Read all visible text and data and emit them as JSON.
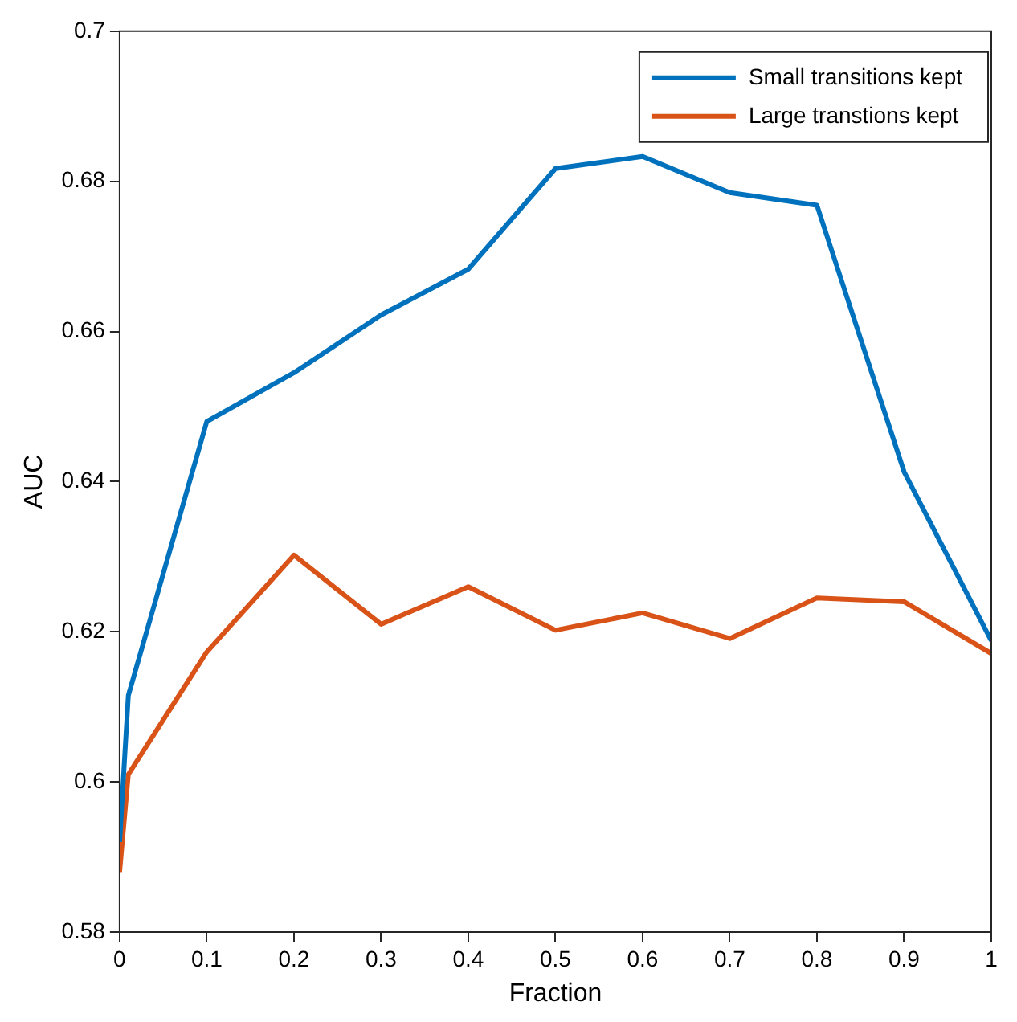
{
  "chart_data": {
    "type": "line",
    "xlabel": "Fraction",
    "ylabel": "AUC",
    "x": [
      0,
      0.01,
      0.1,
      0.2,
      0.3,
      0.4,
      0.5,
      0.6,
      0.7,
      0.8,
      0.9,
      1
    ],
    "series": [
      {
        "name": "Small transitions kept",
        "color": "#0072bd",
        "values": [
          0.592,
          0.6115,
          0.648,
          0.6545,
          0.6622,
          0.6683,
          0.6817,
          0.6833,
          0.6785,
          0.6768,
          0.6413,
          0.6188
        ]
      },
      {
        "name": "Large transtions kept",
        "color": "#d95319",
        "values": [
          0.588,
          0.601,
          0.6173,
          0.6302,
          0.621,
          0.626,
          0.6202,
          0.6225,
          0.6191,
          0.6245,
          0.624,
          0.6171
        ]
      }
    ],
    "xlim": [
      0,
      1
    ],
    "xticks": [
      0,
      0.1,
      0.2,
      0.3,
      0.4,
      0.5,
      0.6,
      0.7,
      0.8,
      0.9,
      1
    ],
    "ylim": [
      0.58,
      0.7
    ],
    "yticks": [
      0.58,
      0.6,
      0.62,
      0.64,
      0.66,
      0.68,
      0.7
    ],
    "grid": false,
    "legend": "top right",
    "marker": "none",
    "line_style": "solid"
  }
}
